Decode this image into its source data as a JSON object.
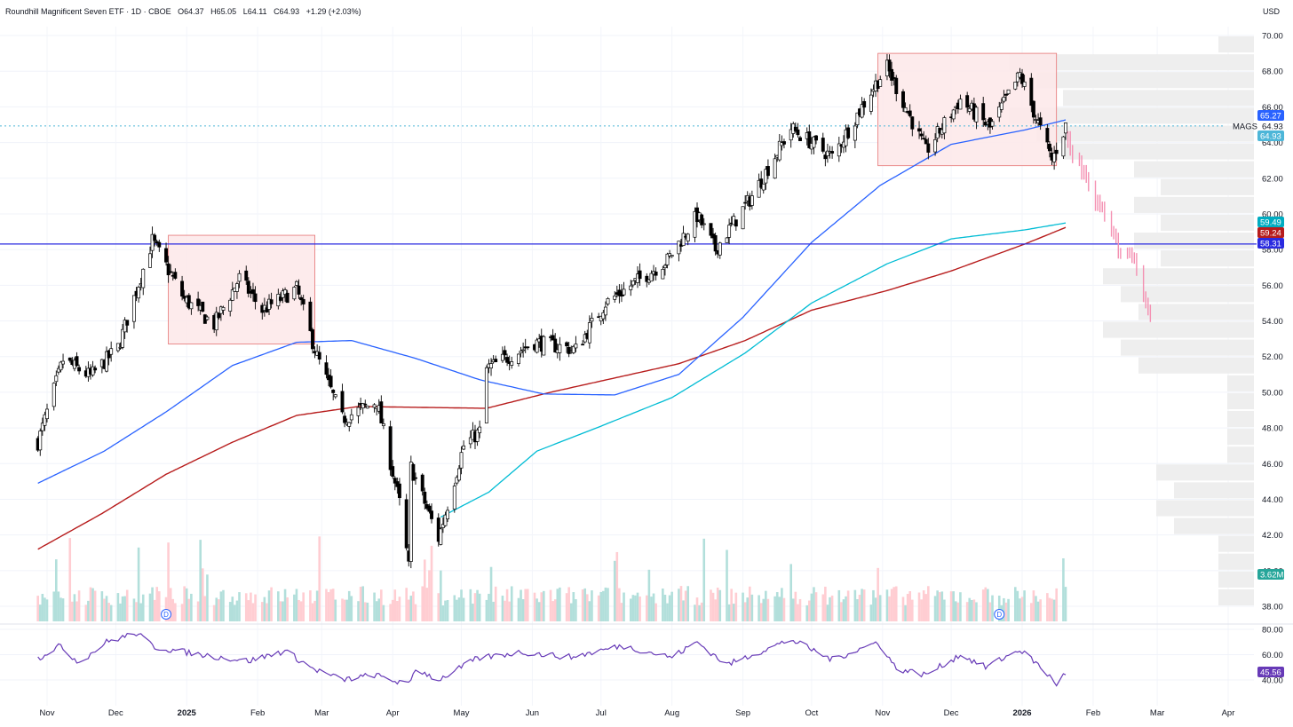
{
  "header": {
    "symbol": "Roundhill Magnificent Seven ETF · 1D · CBOE",
    "open_label": "O64.37",
    "high_label": "H65.05",
    "low_label": "L64.11",
    "close_label": "C64.93",
    "change_label": "+1.29 (+2.03%)"
  },
  "currency": "USD",
  "colors": {
    "up": "#26a69a",
    "down": "#ef5350",
    "candle_body_up": "#ffffff",
    "candle_body_down": "#000000",
    "sma50": "#2962ff",
    "sma100": "#00bcd4",
    "sma200": "#b71c1c",
    "rsi": "#673ab7",
    "level": "#2a2ae0",
    "box_fill": "#fde7e9",
    "box_stroke": "#e57373"
  },
  "chart_data": [
    {
      "type": "candlestick",
      "title": "Roundhill Magnificent Seven ETF · 1D · CBOE",
      "y_axis": {
        "ticks": [
          "70.00",
          "68.00",
          "66.00",
          "64.00",
          "62.00",
          "60.00",
          "58.00",
          "56.00",
          "54.00",
          "52.00",
          "50.00",
          "48.00",
          "46.00",
          "44.00",
          "42.00",
          "40.00",
          "38.00"
        ],
        "range": [
          37,
          71
        ]
      },
      "x_axis": {
        "ticks": [
          "Nov",
          "Dec",
          "2025",
          "Feb",
          "Mar",
          "Apr",
          "May",
          "Jun",
          "Jul",
          "Aug",
          "Sep",
          "Oct",
          "Nov",
          "Dec",
          "2026",
          "Feb",
          "Mar",
          "Apr"
        ]
      },
      "last_price": {
        "label": "MAGS",
        "value": "64.93"
      },
      "price_labels": [
        {
          "value": "65.27",
          "color": "#2962ff"
        },
        {
          "value": "64.93",
          "color": "#4db6d8"
        },
        {
          "value": "59.49",
          "color": "#00acc1"
        },
        {
          "value": "59.24",
          "color": "#b71c1c"
        },
        {
          "value": "58.31",
          "color": "#2a2ae0"
        }
      ],
      "horizontal_level": 58.31,
      "boxes": [
        {
          "from": "2024-12-24",
          "to": "2025-02-26",
          "top": 58.8,
          "bottom": 52.7
        },
        {
          "from": "2025-10-30",
          "to": "2026-01-16",
          "top": 69.0,
          "bottom": 62.7
        }
      ],
      "price_anchors": [
        [
          "2024-10-28",
          47.2
        ],
        [
          "2024-11-08",
          51.8
        ],
        [
          "2024-11-20",
          50.9
        ],
        [
          "2024-12-02",
          52.5
        ],
        [
          "2024-12-17",
          58.5
        ],
        [
          "2024-12-31",
          55.2
        ],
        [
          "2025-01-13",
          53.8
        ],
        [
          "2025-01-24",
          56.4
        ],
        [
          "2025-02-03",
          54.6
        ],
        [
          "2025-02-18",
          55.8
        ],
        [
          "2025-02-27",
          52.0
        ],
        [
          "2025-03-10",
          48.5
        ],
        [
          "2025-03-25",
          49.5
        ],
        [
          "2025-04-04",
          43.8
        ],
        [
          "2025-04-08",
          40.2
        ],
        [
          "2025-04-09",
          45.8
        ],
        [
          "2025-04-21",
          41.8
        ],
        [
          "2025-05-02",
          47.0
        ],
        [
          "2025-05-09",
          47.8
        ],
        [
          "2025-05-12",
          51.3
        ],
        [
          "2025-06-02",
          52.8
        ],
        [
          "2025-06-20",
          52.4
        ],
        [
          "2025-07-03",
          55.0
        ],
        [
          "2025-07-30",
          57.4
        ],
        [
          "2025-08-12",
          59.9
        ],
        [
          "2025-08-20",
          58.0
        ],
        [
          "2025-09-05",
          61.0
        ],
        [
          "2025-09-22",
          64.8
        ],
        [
          "2025-10-10",
          63.2
        ],
        [
          "2025-10-29",
          67.3
        ],
        [
          "2025-11-03",
          68.2
        ],
        [
          "2025-11-20",
          63.5
        ],
        [
          "2025-12-05",
          66.4
        ],
        [
          "2025-12-18",
          64.8
        ],
        [
          "2025-12-31",
          67.8
        ],
        [
          "2026-01-14",
          63.0
        ],
        [
          "2026-01-20",
          64.93
        ]
      ],
      "sma50_anchors": [
        [
          "2024-10-28",
          44.9
        ],
        [
          "2024-11-26",
          46.7
        ],
        [
          "2024-12-23",
          48.9
        ],
        [
          "2025-01-21",
          51.5
        ],
        [
          "2025-02-18",
          52.8
        ],
        [
          "2025-03-14",
          52.9
        ],
        [
          "2025-04-11",
          51.9
        ],
        [
          "2025-05-09",
          50.7
        ],
        [
          "2025-06-06",
          49.9
        ],
        [
          "2025-07-07",
          49.85
        ],
        [
          "2025-08-04",
          51.0
        ],
        [
          "2025-09-01",
          54.2
        ],
        [
          "2025-10-01",
          58.4
        ],
        [
          "2025-10-31",
          61.6
        ],
        [
          "2025-12-01",
          63.9
        ],
        [
          "2026-01-02",
          64.7
        ],
        [
          "2026-01-20",
          65.27
        ]
      ],
      "sma100_anchors": [
        [
          "2025-04-22",
          43.0
        ],
        [
          "2025-05-13",
          44.4
        ],
        [
          "2025-06-03",
          46.7
        ],
        [
          "2025-07-01",
          48.1
        ],
        [
          "2025-08-01",
          49.7
        ],
        [
          "2025-09-02",
          52.2
        ],
        [
          "2025-10-01",
          55.0
        ],
        [
          "2025-11-03",
          57.2
        ],
        [
          "2025-12-01",
          58.6
        ],
        [
          "2026-01-02",
          59.1
        ],
        [
          "2026-01-20",
          59.49
        ]
      ],
      "sma200_anchors": [
        [
          "2024-10-28",
          41.2
        ],
        [
          "2024-11-25",
          43.2
        ],
        [
          "2024-12-23",
          45.4
        ],
        [
          "2025-01-21",
          47.2
        ],
        [
          "2025-02-18",
          48.7
        ],
        [
          "2025-03-17",
          49.2
        ],
        [
          "2025-04-14",
          49.15
        ],
        [
          "2025-05-12",
          49.1
        ],
        [
          "2025-06-09",
          50.0
        ],
        [
          "2025-07-07",
          50.8
        ],
        [
          "2025-08-04",
          51.6
        ],
        [
          "2025-09-02",
          52.9
        ],
        [
          "2025-10-01",
          54.6
        ],
        [
          "2025-11-03",
          55.7
        ],
        [
          "2025-12-01",
          56.8
        ],
        [
          "2026-01-02",
          58.3
        ],
        [
          "2026-01-20",
          59.24
        ]
      ],
      "projection": {
        "from": "2026-01-21",
        "to": "2026-02-26",
        "start": 64.0,
        "end": 54.5,
        "mid_low": 58.0
      },
      "volume_profile_note": "horizontal volume-by-price bars at right edge",
      "volume": {
        "last_label": "3.62M",
        "base_y_value": 37.9,
        "typical_top": 40.5
      },
      "dividends": [
        {
          "date": "2024-12-23",
          "label": "D"
        },
        {
          "date": "2025-12-22",
          "label": "D"
        }
      ]
    },
    {
      "type": "line",
      "title": "",
      "y_axis": {
        "ticks": [
          "80.00",
          "60.00",
          "40.00"
        ],
        "range": [
          35,
          85
        ]
      },
      "last_value_label": "45.56",
      "rsi_anchors": [
        [
          "2024-10-28",
          57
        ],
        [
          "2024-11-06",
          67
        ],
        [
          "2024-11-15",
          54
        ],
        [
          "2024-11-27",
          70
        ],
        [
          "2024-12-10",
          77
        ],
        [
          "2024-12-18",
          66
        ],
        [
          "2025-01-07",
          60
        ],
        [
          "2025-01-28",
          55
        ],
        [
          "2025-02-13",
          63
        ],
        [
          "2025-02-25",
          49
        ],
        [
          "2025-03-10",
          40
        ],
        [
          "2025-03-24",
          44
        ],
        [
          "2025-04-08",
          36
        ],
        [
          "2025-04-11",
          49
        ],
        [
          "2025-04-21",
          40
        ],
        [
          "2025-05-08",
          57
        ],
        [
          "2025-05-27",
          62
        ],
        [
          "2025-06-18",
          58
        ],
        [
          "2025-07-10",
          67
        ],
        [
          "2025-08-01",
          58
        ],
        [
          "2025-08-12",
          70
        ],
        [
          "2025-08-25",
          52
        ],
        [
          "2025-09-22",
          72
        ],
        [
          "2025-10-10",
          56
        ],
        [
          "2025-10-30",
          70
        ],
        [
          "2025-11-07",
          49
        ],
        [
          "2025-11-20",
          44
        ],
        [
          "2025-12-05",
          60
        ],
        [
          "2025-12-16",
          50
        ],
        [
          "2025-12-31",
          64
        ],
        [
          "2026-01-08",
          52
        ],
        [
          "2026-01-16",
          37
        ],
        [
          "2026-01-20",
          45.56
        ]
      ]
    }
  ]
}
